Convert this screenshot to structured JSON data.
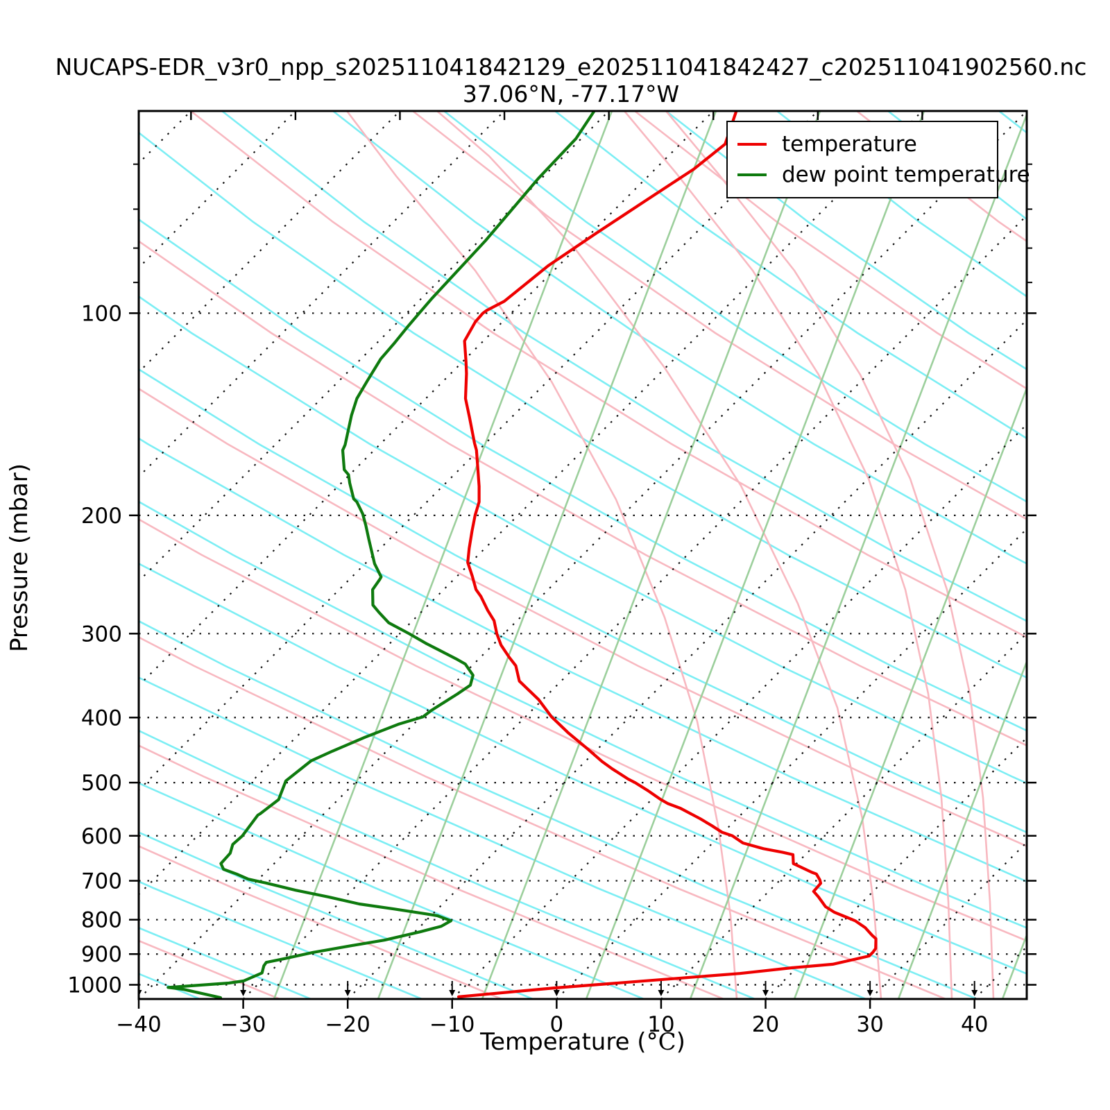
{
  "title": "NUCAPS-EDR_v3r0_npp_s202511041842129_e202511041842427_c202511041902560.nc",
  "subtitle": "37.06°N, -77.17°W",
  "axes": {
    "x": {
      "label_prefix": "Temperature (",
      "label_degree": "°C",
      "label_suffix": ")",
      "label_full": "Temperature (°C)",
      "ticks": [
        -40,
        -30,
        -20,
        -10,
        0,
        10,
        20,
        30,
        40
      ],
      "range": [
        -40,
        45
      ],
      "unit": "°C"
    },
    "y": {
      "label": "Pressure (mbar)",
      "ticks": [
        100,
        200,
        300,
        400,
        500,
        600,
        700,
        800,
        900,
        1000
      ],
      "minor_ticks": [
        60,
        70,
        80,
        90
      ],
      "range": [
        1050,
        50
      ],
      "scale": "log"
    }
  },
  "legend": {
    "items": [
      {
        "label": "temperature",
        "color": "#ee0000"
      },
      {
        "label": "dew point temperature",
        "color": "#0e7a0e"
      }
    ]
  },
  "colors": {
    "temperature": "#ee0000",
    "dew_point": "#0e7a0e",
    "isotherm_dotted": "#111111",
    "isobar_dotted": "#111111",
    "adiabat_cyan": "#7ceef4",
    "adiabat_pink": "#f8b8c0",
    "mixing_green": "#9ccf9c",
    "frame": "#000000",
    "background": "#ffffff"
  },
  "chart_data": {
    "type": "line",
    "variant": "skew-T log-P sounding",
    "title": "NUCAPS-EDR_v3r0_npp_s202511041842129_e202511041842427_c202511041902560.nc",
    "subtitle": "37.06°N, -77.17°W",
    "xlabel": "Temperature (°C)",
    "ylabel": "Pressure (mbar)",
    "x_range_c": [
      -40,
      45
    ],
    "p_range_mbar": [
      1050,
      50
    ],
    "skew_deg": 45,
    "note": "points are [pressure_mbar, temperature_C]; rendered x = T + skew offset along 45-degree isotherms",
    "series": [
      {
        "name": "temperature",
        "color": "#ee0000",
        "points": [
          [
            1042,
            -9.6
          ],
          [
            1011,
            -1.3
          ],
          [
            962,
            15.1
          ],
          [
            943,
            19.6
          ],
          [
            932,
            23.1
          ],
          [
            906,
            25.8
          ],
          [
            895,
            25.8
          ],
          [
            883,
            25.7
          ],
          [
            854,
            24.8
          ],
          [
            844,
            24.1
          ],
          [
            822,
            22.7
          ],
          [
            803,
            21.1
          ],
          [
            793,
            19.9
          ],
          [
            780,
            18.3
          ],
          [
            765,
            16.9
          ],
          [
            740,
            15.3
          ],
          [
            726,
            14.3
          ],
          [
            706,
            14.2
          ],
          [
            698,
            13.8
          ],
          [
            684,
            12.9
          ],
          [
            680,
            12.3
          ],
          [
            660,
            9.7
          ],
          [
            640,
            8.8
          ],
          [
            635,
            7.6
          ],
          [
            627,
            5.4
          ],
          [
            615,
            2.9
          ],
          [
            600,
            1.2
          ],
          [
            593,
            -0.1
          ],
          [
            579,
            -1.8
          ],
          [
            566,
            -3.5
          ],
          [
            546,
            -6.4
          ],
          [
            537,
            -8.1
          ],
          [
            530,
            -9.1
          ],
          [
            514,
            -11.2
          ],
          [
            500,
            -13.2
          ],
          [
            494,
            -14.2
          ],
          [
            477,
            -16.7
          ],
          [
            465,
            -18.4
          ],
          [
            446,
            -20.9
          ],
          [
            422,
            -24.3
          ],
          [
            399,
            -27.5
          ],
          [
            376,
            -30.4
          ],
          [
            353,
            -34.0
          ],
          [
            335,
            -35.8
          ],
          [
            325,
            -37.3
          ],
          [
            312,
            -39.2
          ],
          [
            300,
            -40.7
          ],
          [
            287,
            -42.2
          ],
          [
            277,
            -43.8
          ],
          [
            264,
            -45.8
          ],
          [
            258,
            -46.9
          ],
          [
            246,
            -48.6
          ],
          [
            235,
            -50.3
          ],
          [
            224,
            -51.5
          ],
          [
            211,
            -52.9
          ],
          [
            200,
            -54.1
          ],
          [
            191,
            -55.0
          ],
          [
            181,
            -56.5
          ],
          [
            171,
            -58.2
          ],
          [
            160,
            -60.2
          ],
          [
            156,
            -61.1
          ],
          [
            143,
            -64.0
          ],
          [
            134,
            -66.2
          ],
          [
            123,
            -68.5
          ],
          [
            118,
            -69.7
          ],
          [
            110,
            -71.8
          ],
          [
            103,
            -72.6
          ],
          [
            100,
            -72.7
          ],
          [
            99,
            -72.6
          ],
          [
            96,
            -71.8
          ],
          [
            85,
            -71.0
          ],
          [
            76,
            -69.5
          ],
          [
            68,
            -67.9
          ],
          [
            61,
            -66.3
          ],
          [
            56,
            -65.7
          ],
          [
            50,
            -67.8
          ]
        ]
      },
      {
        "name": "dew point temperature",
        "color": "#0e7a0e",
        "points": [
          [
            1045,
            -32.3
          ],
          [
            1016,
            -36.6
          ],
          [
            1009,
            -38.3
          ],
          [
            994,
            -32.9
          ],
          [
            987,
            -31.7
          ],
          [
            960,
            -30.7
          ],
          [
            937,
            -31.2
          ],
          [
            926,
            -31.3
          ],
          [
            915,
            -30.0
          ],
          [
            895,
            -27.8
          ],
          [
            874,
            -24.7
          ],
          [
            858,
            -22.1
          ],
          [
            834,
            -19.5
          ],
          [
            818,
            -18.0
          ],
          [
            803,
            -17.6
          ],
          [
            789,
            -19.4
          ],
          [
            784,
            -20.7
          ],
          [
            771,
            -24.2
          ],
          [
            758,
            -28.0
          ],
          [
            740,
            -31.6
          ],
          [
            723,
            -35.4
          ],
          [
            705,
            -39.0
          ],
          [
            696,
            -41.0
          ],
          [
            684,
            -42.6
          ],
          [
            673,
            -44.3
          ],
          [
            660,
            -45.1
          ],
          [
            637,
            -45.2
          ],
          [
            618,
            -45.8
          ],
          [
            600,
            -45.7
          ],
          [
            559,
            -46.2
          ],
          [
            556,
            -46.1
          ],
          [
            530,
            -45.7
          ],
          [
            497,
            -46.8
          ],
          [
            464,
            -46.3
          ],
          [
            449,
            -45.2
          ],
          [
            428,
            -43.4
          ],
          [
            409,
            -41.4
          ],
          [
            399,
            -39.8
          ],
          [
            390,
            -39.6
          ],
          [
            369,
            -38.7
          ],
          [
            358,
            -38.3
          ],
          [
            346,
            -39.0
          ],
          [
            333,
            -40.8
          ],
          [
            327,
            -42.2
          ],
          [
            310,
            -46.6
          ],
          [
            300,
            -49.1
          ],
          [
            289,
            -52.1
          ],
          [
            279,
            -54.0
          ],
          [
            272,
            -55.3
          ],
          [
            258,
            -56.8
          ],
          [
            249,
            -57.1
          ],
          [
            247,
            -57.2
          ],
          [
            236,
            -59.1
          ],
          [
            217,
            -62.0
          ],
          [
            207,
            -63.6
          ],
          [
            199,
            -65.0
          ],
          [
            191,
            -66.7
          ],
          [
            189,
            -67.3
          ],
          [
            179,
            -69.2
          ],
          [
            174,
            -70.1
          ],
          [
            171,
            -71.0
          ],
          [
            160,
            -73.0
          ],
          [
            157,
            -73.3
          ],
          [
            142,
            -75.5
          ],
          [
            134,
            -76.6
          ],
          [
            126,
            -77.3
          ],
          [
            117,
            -78.1
          ],
          [
            111,
            -78.3
          ],
          [
            105,
            -78.6
          ],
          [
            100,
            -78.8
          ],
          [
            95,
            -79.0
          ],
          [
            78,
            -79.4
          ],
          [
            63,
            -80.3
          ],
          [
            55,
            -80.5
          ],
          [
            50,
            -81.4
          ]
        ]
      }
    ],
    "grid": {
      "isobars_mbar": [
        100,
        200,
        300,
        400,
        500,
        600,
        700,
        800,
        900,
        1000
      ],
      "isotherms_c_step": 10,
      "legend_position": "upper right",
      "grid_dotted": true
    }
  }
}
